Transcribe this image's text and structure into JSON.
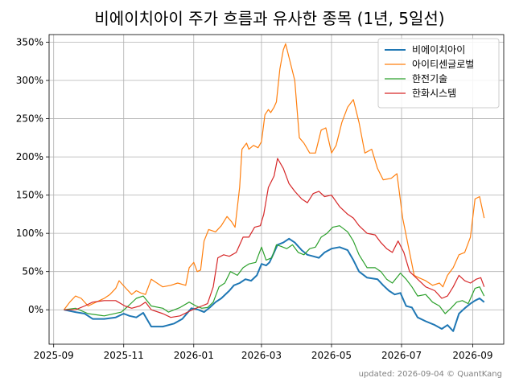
{
  "chart_data": {
    "type": "line",
    "title": "비에이치아이 주가 흐름과 유사한 종목 (1년, 5일선)",
    "footer": "updated: 2026-09-04 © QuantKang",
    "xlabel": "",
    "ylabel": "",
    "grid": true,
    "legend_position": "top-right",
    "y_unit": "%",
    "ylim": [
      -45,
      360
    ],
    "xlim": [
      "2025-08-28",
      "2026-09-28"
    ],
    "x_ticks": [
      "2025-09",
      "2025-11",
      "2026-01",
      "2026-03",
      "2026-05",
      "2026-07",
      "2026-09"
    ],
    "y_ticks": [
      0,
      50,
      100,
      150,
      200,
      250,
      300,
      350
    ],
    "y_tick_labels": [
      "0%",
      "50%",
      "100%",
      "150%",
      "200%",
      "250%",
      "300%",
      "350%"
    ],
    "series": [
      {
        "name": "비에이치아이",
        "color": "#1f77b4",
        "width": 2,
        "points": [
          [
            "2025-09-10",
            0
          ],
          [
            "2025-09-20",
            -3
          ],
          [
            "2025-09-28",
            -5
          ],
          [
            "2025-10-05",
            -12
          ],
          [
            "2025-10-15",
            -12
          ],
          [
            "2025-10-25",
            -10
          ],
          [
            "2025-11-01",
            -5
          ],
          [
            "2025-11-06",
            -8
          ],
          [
            "2025-11-12",
            -10
          ],
          [
            "2025-11-18",
            -4
          ],
          [
            "2025-11-25",
            -22
          ],
          [
            "2025-12-05",
            -22
          ],
          [
            "2025-12-15",
            -18
          ],
          [
            "2025-12-22",
            -12
          ],
          [
            "2025-12-30",
            2
          ],
          [
            "2026-01-05",
            0
          ],
          [
            "2026-01-10",
            -3
          ],
          [
            "2026-01-15",
            3
          ],
          [
            "2026-01-20",
            10
          ],
          [
            "2026-01-25",
            15
          ],
          [
            "2026-02-01",
            25
          ],
          [
            "2026-02-05",
            32
          ],
          [
            "2026-02-10",
            35
          ],
          [
            "2026-02-15",
            40
          ],
          [
            "2026-02-20",
            38
          ],
          [
            "2026-02-25",
            45
          ],
          [
            "2026-03-01",
            60
          ],
          [
            "2026-03-05",
            58
          ],
          [
            "2026-03-08",
            62
          ],
          [
            "2026-03-12",
            75
          ],
          [
            "2026-03-15",
            85
          ],
          [
            "2026-03-20",
            88
          ],
          [
            "2026-03-25",
            93
          ],
          [
            "2026-03-30",
            88
          ],
          [
            "2026-04-05",
            78
          ],
          [
            "2026-04-10",
            72
          ],
          [
            "2026-04-15",
            70
          ],
          [
            "2026-04-20",
            68
          ],
          [
            "2026-04-25",
            75
          ],
          [
            "2026-05-01",
            80
          ],
          [
            "2026-05-08",
            82
          ],
          [
            "2026-05-15",
            78
          ],
          [
            "2026-05-20",
            65
          ],
          [
            "2026-05-25",
            50
          ],
          [
            "2026-06-01",
            42
          ],
          [
            "2026-06-10",
            40
          ],
          [
            "2026-06-15",
            32
          ],
          [
            "2026-06-20",
            25
          ],
          [
            "2026-06-25",
            20
          ],
          [
            "2026-06-30",
            22
          ],
          [
            "2026-07-05",
            5
          ],
          [
            "2026-07-10",
            3
          ],
          [
            "2026-07-15",
            -10
          ],
          [
            "2026-07-22",
            -15
          ],
          [
            "2026-07-30",
            -20
          ],
          [
            "2026-08-05",
            -25
          ],
          [
            "2026-08-10",
            -20
          ],
          [
            "2026-08-15",
            -28
          ],
          [
            "2026-08-20",
            -5
          ],
          [
            "2026-08-25",
            2
          ],
          [
            "2026-08-30",
            8
          ],
          [
            "2026-09-03",
            12
          ],
          [
            "2026-09-07",
            15
          ],
          [
            "2026-09-11",
            10
          ]
        ]
      },
      {
        "name": "아이티센글로벌",
        "color": "#ff7f0e",
        "width": 1.2,
        "points": [
          [
            "2025-09-10",
            0
          ],
          [
            "2025-09-15",
            10
          ],
          [
            "2025-09-20",
            18
          ],
          [
            "2025-09-25",
            15
          ],
          [
            "2025-10-01",
            5
          ],
          [
            "2025-10-08",
            10
          ],
          [
            "2025-10-15",
            15
          ],
          [
            "2025-10-20",
            20
          ],
          [
            "2025-10-25",
            28
          ],
          [
            "2025-10-28",
            38
          ],
          [
            "2025-11-03",
            28
          ],
          [
            "2025-11-08",
            20
          ],
          [
            "2025-11-12",
            25
          ],
          [
            "2025-11-16",
            22
          ],
          [
            "2025-11-20",
            20
          ],
          [
            "2025-11-25",
            40
          ],
          [
            "2025-11-30",
            35
          ],
          [
            "2025-12-05",
            30
          ],
          [
            "2025-12-12",
            32
          ],
          [
            "2025-12-18",
            35
          ],
          [
            "2025-12-25",
            32
          ],
          [
            "2025-12-28",
            55
          ],
          [
            "2026-01-01",
            62
          ],
          [
            "2026-01-04",
            50
          ],
          [
            "2026-01-07",
            52
          ],
          [
            "2026-01-10",
            90
          ],
          [
            "2026-01-14",
            105
          ],
          [
            "2026-01-20",
            102
          ],
          [
            "2026-01-25",
            110
          ],
          [
            "2026-01-30",
            122
          ],
          [
            "2026-02-03",
            115
          ],
          [
            "2026-02-06",
            108
          ],
          [
            "2026-02-10",
            160
          ],
          [
            "2026-02-12",
            210
          ],
          [
            "2026-02-16",
            218
          ],
          [
            "2026-02-18",
            210
          ],
          [
            "2026-02-22",
            215
          ],
          [
            "2026-02-26",
            212
          ],
          [
            "2026-03-01",
            220
          ],
          [
            "2026-03-04",
            255
          ],
          [
            "2026-03-07",
            262
          ],
          [
            "2026-03-09",
            258
          ],
          [
            "2026-03-12",
            265
          ],
          [
            "2026-03-14",
            272
          ],
          [
            "2026-03-17",
            315
          ],
          [
            "2026-03-20",
            340
          ],
          [
            "2026-03-22",
            348
          ],
          [
            "2026-03-25",
            330
          ],
          [
            "2026-03-30",
            300
          ],
          [
            "2026-04-03",
            225
          ],
          [
            "2026-04-07",
            218
          ],
          [
            "2026-04-12",
            205
          ],
          [
            "2026-04-17",
            205
          ],
          [
            "2026-04-22",
            235
          ],
          [
            "2026-04-26",
            238
          ],
          [
            "2026-05-01",
            205
          ],
          [
            "2026-05-05",
            215
          ],
          [
            "2026-05-10",
            245
          ],
          [
            "2026-05-15",
            265
          ],
          [
            "2026-05-20",
            275
          ],
          [
            "2026-05-25",
            245
          ],
          [
            "2026-05-30",
            205
          ],
          [
            "2026-06-05",
            210
          ],
          [
            "2026-06-10",
            185
          ],
          [
            "2026-06-15",
            170
          ],
          [
            "2026-06-22",
            172
          ],
          [
            "2026-06-27",
            178
          ],
          [
            "2026-07-02",
            120
          ],
          [
            "2026-07-08",
            75
          ],
          [
            "2026-07-12",
            45
          ],
          [
            "2026-07-16",
            42
          ],
          [
            "2026-07-22",
            38
          ],
          [
            "2026-07-28",
            32
          ],
          [
            "2026-08-03",
            35
          ],
          [
            "2026-08-06",
            30
          ],
          [
            "2026-08-10",
            45
          ],
          [
            "2026-08-15",
            55
          ],
          [
            "2026-08-20",
            72
          ],
          [
            "2026-08-25",
            75
          ],
          [
            "2026-08-30",
            95
          ],
          [
            "2026-09-03",
            145
          ],
          [
            "2026-09-07",
            148
          ],
          [
            "2026-09-11",
            120
          ]
        ]
      },
      {
        "name": "한전기술",
        "color": "#2ca02c",
        "width": 1.2,
        "points": [
          [
            "2025-09-10",
            0
          ],
          [
            "2025-09-20",
            2
          ],
          [
            "2025-10-01",
            -5
          ],
          [
            "2025-10-15",
            -8
          ],
          [
            "2025-10-30",
            -3
          ],
          [
            "2025-11-05",
            5
          ],
          [
            "2025-11-12",
            15
          ],
          [
            "2025-11-18",
            18
          ],
          [
            "2025-11-25",
            5
          ],
          [
            "2025-12-05",
            2
          ],
          [
            "2025-12-10",
            -3
          ],
          [
            "2025-12-20",
            3
          ],
          [
            "2025-12-28",
            10
          ],
          [
            "2026-01-03",
            5
          ],
          [
            "2026-01-08",
            2
          ],
          [
            "2026-01-13",
            3
          ],
          [
            "2026-01-18",
            10
          ],
          [
            "2026-01-23",
            30
          ],
          [
            "2026-01-28",
            35
          ],
          [
            "2026-02-02",
            50
          ],
          [
            "2026-02-08",
            45
          ],
          [
            "2026-02-13",
            55
          ],
          [
            "2026-02-18",
            60
          ],
          [
            "2026-02-24",
            62
          ],
          [
            "2026-03-01",
            82
          ],
          [
            "2026-03-05",
            65
          ],
          [
            "2026-03-10",
            68
          ],
          [
            "2026-03-14",
            85
          ],
          [
            "2026-03-18",
            83
          ],
          [
            "2026-03-23",
            80
          ],
          [
            "2026-03-28",
            85
          ],
          [
            "2026-04-02",
            75
          ],
          [
            "2026-04-07",
            72
          ],
          [
            "2026-04-12",
            80
          ],
          [
            "2026-04-17",
            82
          ],
          [
            "2026-04-22",
            95
          ],
          [
            "2026-04-27",
            100
          ],
          [
            "2026-05-02",
            108
          ],
          [
            "2026-05-08",
            110
          ],
          [
            "2026-05-15",
            102
          ],
          [
            "2026-05-20",
            90
          ],
          [
            "2026-05-25",
            72
          ],
          [
            "2026-06-01",
            55
          ],
          [
            "2026-06-08",
            55
          ],
          [
            "2026-06-13",
            50
          ],
          [
            "2026-06-18",
            40
          ],
          [
            "2026-06-23",
            35
          ],
          [
            "2026-06-30",
            48
          ],
          [
            "2026-07-05",
            40
          ],
          [
            "2026-07-10",
            30
          ],
          [
            "2026-07-15",
            18
          ],
          [
            "2026-07-22",
            20
          ],
          [
            "2026-07-28",
            10
          ],
          [
            "2026-08-03",
            5
          ],
          [
            "2026-08-08",
            -5
          ],
          [
            "2026-08-13",
            2
          ],
          [
            "2026-08-18",
            10
          ],
          [
            "2026-08-23",
            12
          ],
          [
            "2026-08-28",
            8
          ],
          [
            "2026-09-03",
            28
          ],
          [
            "2026-09-07",
            30
          ],
          [
            "2026-09-11",
            18
          ]
        ]
      },
      {
        "name": "한화시스템",
        "color": "#d62728",
        "width": 1.2,
        "points": [
          [
            "2025-09-10",
            0
          ],
          [
            "2025-09-20",
            0
          ],
          [
            "2025-09-28",
            5
          ],
          [
            "2025-10-05",
            10
          ],
          [
            "2025-10-15",
            12
          ],
          [
            "2025-10-25",
            12
          ],
          [
            "2025-11-02",
            5
          ],
          [
            "2025-11-08",
            2
          ],
          [
            "2025-11-15",
            5
          ],
          [
            "2025-11-20",
            10
          ],
          [
            "2025-11-25",
            0
          ],
          [
            "2025-12-05",
            -5
          ],
          [
            "2025-12-12",
            -10
          ],
          [
            "2025-12-20",
            -8
          ],
          [
            "2025-12-28",
            -2
          ],
          [
            "2026-01-03",
            2
          ],
          [
            "2026-01-08",
            5
          ],
          [
            "2026-01-13",
            8
          ],
          [
            "2026-01-18",
            30
          ],
          [
            "2026-01-22",
            68
          ],
          [
            "2026-01-27",
            72
          ],
          [
            "2026-02-01",
            70
          ],
          [
            "2026-02-07",
            75
          ],
          [
            "2026-02-13",
            95
          ],
          [
            "2026-02-18",
            95
          ],
          [
            "2026-02-23",
            108
          ],
          [
            "2026-02-28",
            110
          ],
          [
            "2026-03-03",
            125
          ],
          [
            "2026-03-07",
            160
          ],
          [
            "2026-03-12",
            175
          ],
          [
            "2026-03-15",
            198
          ],
          [
            "2026-03-20",
            185
          ],
          [
            "2026-03-25",
            165
          ],
          [
            "2026-03-30",
            155
          ],
          [
            "2026-04-05",
            145
          ],
          [
            "2026-04-10",
            140
          ],
          [
            "2026-04-15",
            152
          ],
          [
            "2026-04-20",
            155
          ],
          [
            "2026-04-25",
            148
          ],
          [
            "2026-05-01",
            150
          ],
          [
            "2026-05-08",
            135
          ],
          [
            "2026-05-15",
            125
          ],
          [
            "2026-05-20",
            120
          ],
          [
            "2026-05-25",
            110
          ],
          [
            "2026-06-01",
            100
          ],
          [
            "2026-06-08",
            98
          ],
          [
            "2026-06-13",
            88
          ],
          [
            "2026-06-18",
            80
          ],
          [
            "2026-06-23",
            75
          ],
          [
            "2026-06-28",
            90
          ],
          [
            "2026-07-03",
            75
          ],
          [
            "2026-07-08",
            50
          ],
          [
            "2026-07-15",
            40
          ],
          [
            "2026-07-22",
            30
          ],
          [
            "2026-07-30",
            25
          ],
          [
            "2026-08-05",
            15
          ],
          [
            "2026-08-10",
            18
          ],
          [
            "2026-08-15",
            30
          ],
          [
            "2026-08-20",
            45
          ],
          [
            "2026-08-25",
            38
          ],
          [
            "2026-08-30",
            35
          ],
          [
            "2026-09-04",
            40
          ],
          [
            "2026-09-08",
            42
          ],
          [
            "2026-09-11",
            30
          ]
        ]
      }
    ]
  }
}
